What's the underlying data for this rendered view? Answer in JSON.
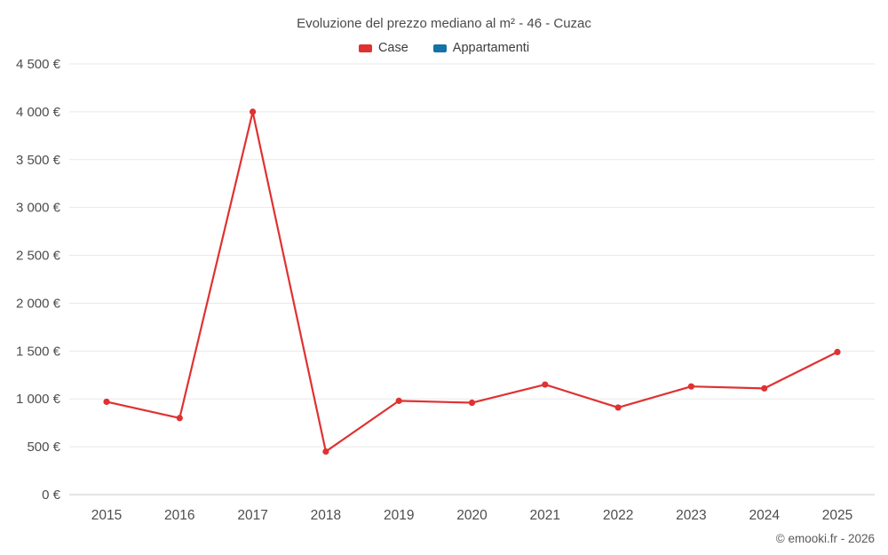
{
  "chart_data": {
    "type": "line",
    "title": "Evoluzione del prezzo mediano al m² - 46 - Cuzac",
    "categories": [
      "2015",
      "2016",
      "2017",
      "2018",
      "2019",
      "2020",
      "2021",
      "2022",
      "2023",
      "2024",
      "2025"
    ],
    "series": [
      {
        "name": "Case",
        "color": "#e03131",
        "values": [
          970,
          800,
          4000,
          450,
          980,
          960,
          1150,
          910,
          1130,
          1110,
          1490
        ]
      },
      {
        "name": "Appartamenti",
        "color": "#1572a8",
        "values": []
      }
    ],
    "xlabel": "",
    "ylabel": "",
    "ylim": [
      0,
      4500
    ],
    "ytick_step": 500,
    "value_format": {
      "thousands_sep": " ",
      "suffix": " €"
    },
    "grid": true,
    "legend_position": "top"
  },
  "footer": {
    "copyright": "© emooki.fr - 2026"
  }
}
